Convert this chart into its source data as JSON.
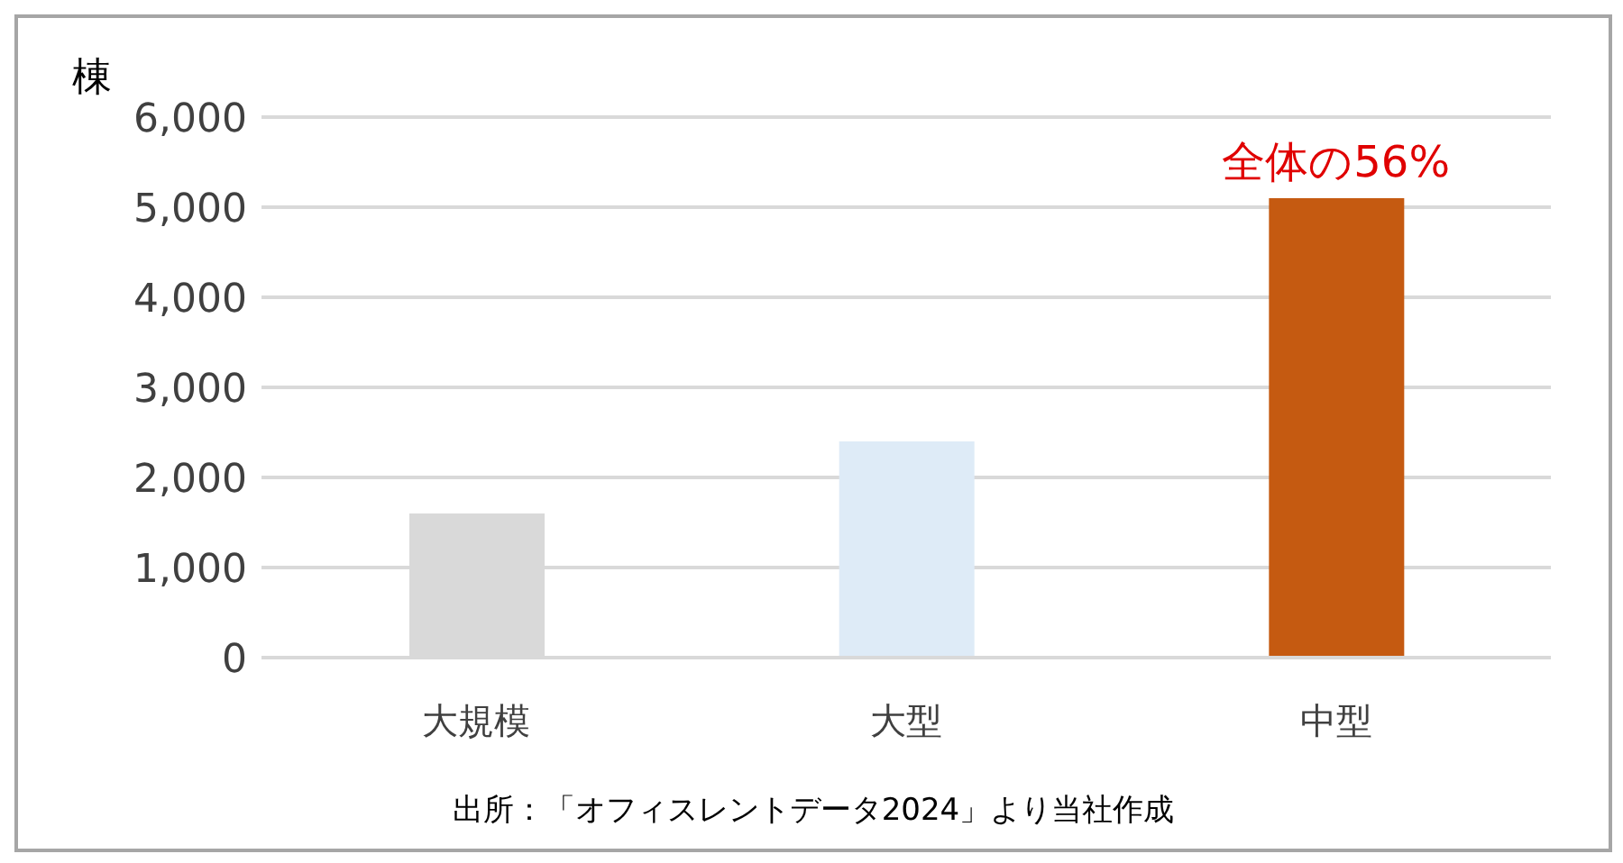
{
  "chart_data": {
    "type": "bar",
    "ylabel": "棟",
    "categories": [
      "大規模",
      "大型",
      "中型"
    ],
    "values": [
      1600,
      2400,
      5100
    ],
    "colors": [
      "#d9d9d9",
      "#deebf7",
      "#c55a11"
    ],
    "ylim": [
      0,
      6000
    ],
    "yticks": [
      0,
      {
        "value": 1000,
        "label": "1,000"
      },
      {
        "value": 2000,
        "label": "2,000"
      },
      {
        "value": 3000,
        "label": "3,000"
      },
      {
        "value": 4000,
        "label": "4,000"
      },
      {
        "value": 5000,
        "label": "5,000"
      },
      {
        "value": 6000,
        "label": "6,000"
      }
    ],
    "grid": "y",
    "legend": false,
    "annotations": [
      {
        "text": "全体の56%",
        "x": "中型",
        "y": 5100
      },
      "出所：「オフィスレントデータ2024」より当社作成"
    ]
  }
}
